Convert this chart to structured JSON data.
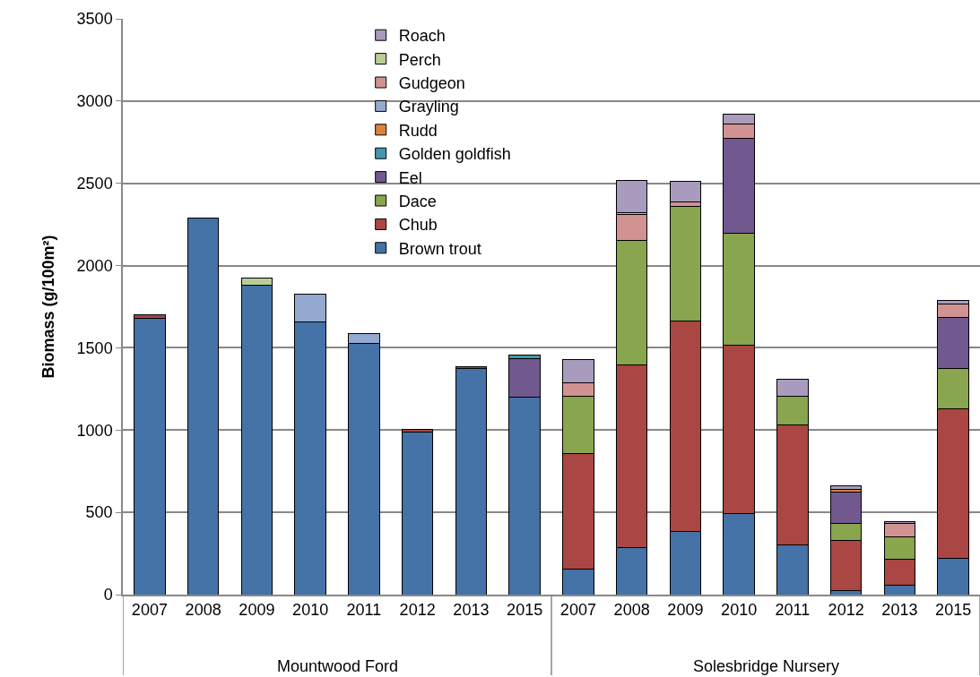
{
  "chart_data": {
    "type": "bar",
    "stacked": true,
    "ylabel": "Biomass (g/100m²)",
    "categories": [
      "2007",
      "2008",
      "2009",
      "2010",
      "2011",
      "2012",
      "2013",
      "2015",
      "2007",
      "2008",
      "2009",
      "2010",
      "2011",
      "2012",
      "2013",
      "2015"
    ],
    "annotations": [
      "Mountwood Ford",
      "Solesbridge Nursery"
    ],
    "ylim": [
      0,
      3500
    ],
    "yticks": [
      0,
      500,
      1000,
      1500,
      2000,
      2500,
      3000,
      3500
    ],
    "grid": "y",
    "legend": "top",
    "series": [
      {
        "name": "Brown trout",
        "color": "#4572a7",
        "values": [
          1680,
          2290,
          1880,
          1655,
          1525,
          990,
          1375,
          1200,
          155,
          285,
          385,
          490,
          300,
          22,
          56,
          221
        ]
      },
      {
        "name": "Chub",
        "color": "#aa4643",
        "values": [
          20,
          null,
          null,
          null,
          null,
          12,
          12,
          null,
          705,
          1110,
          1280,
          1025,
          730,
          310,
          158,
          907
        ]
      },
      {
        "name": "Dace",
        "color": "#89a54e",
        "values": [
          null,
          null,
          null,
          null,
          null,
          null,
          null,
          null,
          347,
          757,
          693,
          684,
          176,
          100,
          138,
          249
        ]
      },
      {
        "name": "Eel",
        "color": "#71588f",
        "values": [
          null,
          null,
          null,
          null,
          null,
          null,
          null,
          235,
          null,
          null,
          null,
          577,
          null,
          192,
          null,
          307
        ]
      },
      {
        "name": "Golden goldfish",
        "color": "#4198af",
        "values": [
          null,
          null,
          null,
          null,
          null,
          null,
          null,
          20,
          null,
          null,
          null,
          null,
          null,
          null,
          null,
          null
        ]
      },
      {
        "name": "Rudd",
        "color": "#db843d",
        "values": [
          null,
          null,
          null,
          null,
          null,
          null,
          null,
          null,
          null,
          null,
          null,
          null,
          null,
          13,
          null,
          null
        ]
      },
      {
        "name": "Grayling",
        "color": "#93a9cf",
        "values": [
          null,
          null,
          null,
          170,
          60,
          null,
          null,
          null,
          null,
          null,
          null,
          null,
          null,
          null,
          null,
          null
        ]
      },
      {
        "name": "Gudgeon",
        "color": "#d19392",
        "values": [
          null,
          null,
          null,
          null,
          null,
          null,
          null,
          null,
          78,
          156,
          31,
          87,
          null,
          null,
          82,
          80
        ]
      },
      {
        "name": "Perch",
        "color": "#b9cd96",
        "values": [
          null,
          null,
          45,
          null,
          null,
          null,
          null,
          null,
          null,
          15,
          null,
          null,
          null,
          null,
          null,
          null
        ]
      },
      {
        "name": "Roach",
        "color": "#a99bbd",
        "values": [
          null,
          null,
          null,
          null,
          null,
          null,
          null,
          null,
          143,
          196,
          122,
          55,
          101,
          27,
          11,
          22
        ]
      }
    ]
  }
}
